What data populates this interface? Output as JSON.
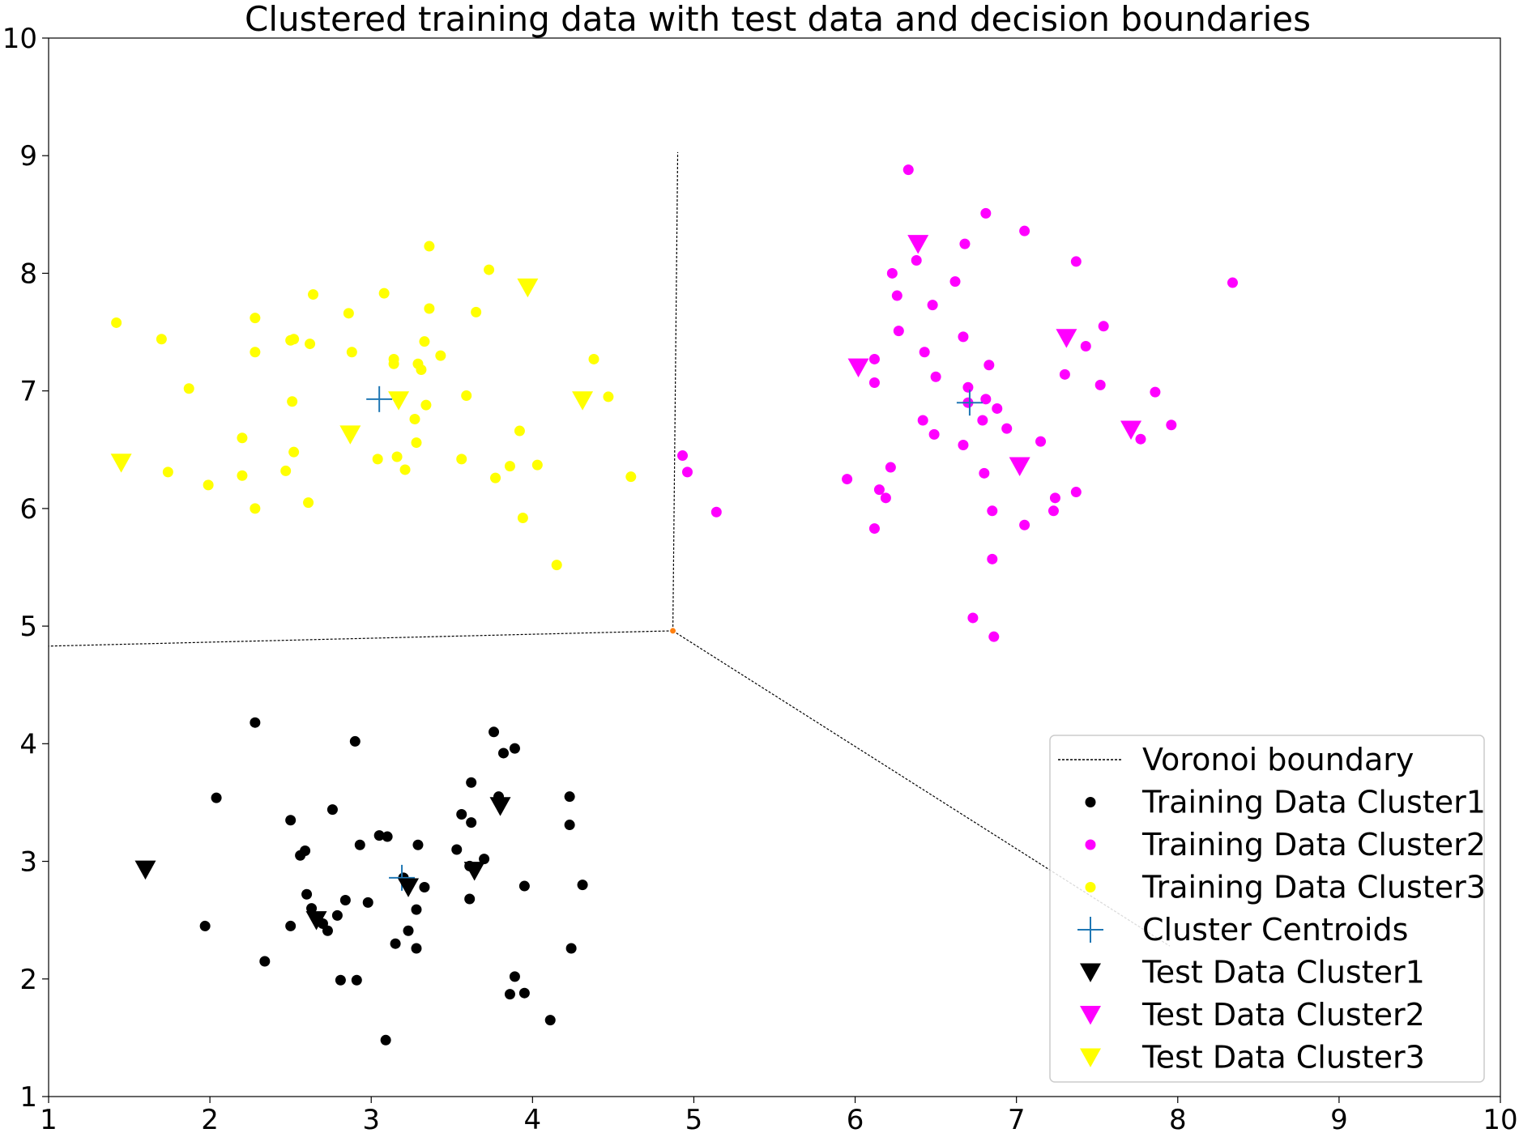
{
  "chart_data": {
    "type": "scatter",
    "title": "Clustered training data with test data and decision boundaries",
    "xlabel": "",
    "ylabel": "",
    "xlim": [
      1,
      10
    ],
    "ylim": [
      1,
      10
    ],
    "x_ticks": [
      "1",
      "2",
      "3",
      "4",
      "5",
      "6",
      "7",
      "8",
      "9",
      "10"
    ],
    "y_ticks": [
      "1",
      "2",
      "3",
      "4",
      "5",
      "6",
      "7",
      "8",
      "9",
      "10"
    ],
    "grid": false,
    "legend_position": "lower right",
    "voronoi": {
      "name": "Voronoi boundary",
      "vertex": [
        4.87,
        4.96
      ],
      "segments": [
        [
          [
            4.87,
            4.96
          ],
          [
            4.9,
            9.03
          ]
        ],
        [
          [
            4.87,
            4.96
          ],
          [
            1.0,
            4.83
          ]
        ],
        [
          [
            4.87,
            4.96
          ],
          [
            7.95,
            2.28
          ]
        ]
      ],
      "vertex_color": "#ff7f0e"
    },
    "series": [
      {
        "name": "Training Data Cluster1",
        "color": "#000000",
        "marker": "circle",
        "points": [
          [
            2.28,
            4.18
          ],
          [
            2.9,
            4.02
          ],
          [
            3.76,
            4.1
          ],
          [
            3.89,
            3.96
          ],
          [
            3.82,
            3.92
          ],
          [
            2.04,
            3.54
          ],
          [
            3.62,
            3.67
          ],
          [
            3.79,
            3.55
          ],
          [
            4.23,
            3.55
          ],
          [
            3.56,
            3.4
          ],
          [
            2.76,
            3.44
          ],
          [
            2.5,
            3.35
          ],
          [
            3.62,
            3.33
          ],
          [
            4.23,
            3.31
          ],
          [
            3.05,
            3.22
          ],
          [
            3.1,
            3.21
          ],
          [
            2.93,
            3.14
          ],
          [
            3.29,
            3.14
          ],
          [
            3.53,
            3.1
          ],
          [
            2.59,
            3.09
          ],
          [
            2.56,
            3.05
          ],
          [
            3.7,
            3.02
          ],
          [
            3.61,
            2.96
          ],
          [
            1.6,
            2.95
          ],
          [
            3.2,
            2.86
          ],
          [
            4.31,
            2.8
          ],
          [
            3.95,
            2.79
          ],
          [
            3.33,
            2.78
          ],
          [
            2.6,
            2.72
          ],
          [
            3.61,
            2.68
          ],
          [
            2.84,
            2.67
          ],
          [
            2.98,
            2.65
          ],
          [
            2.63,
            2.6
          ],
          [
            3.28,
            2.59
          ],
          [
            2.79,
            2.54
          ],
          [
            2.66,
            2.51
          ],
          [
            2.7,
            2.47
          ],
          [
            1.97,
            2.45
          ],
          [
            2.5,
            2.45
          ],
          [
            3.23,
            2.41
          ],
          [
            2.73,
            2.41
          ],
          [
            3.15,
            2.3
          ],
          [
            3.28,
            2.26
          ],
          [
            4.24,
            2.26
          ],
          [
            2.34,
            2.15
          ],
          [
            3.89,
            2.02
          ],
          [
            2.81,
            1.99
          ],
          [
            2.91,
            1.99
          ],
          [
            3.95,
            1.88
          ],
          [
            3.86,
            1.87
          ],
          [
            4.11,
            1.65
          ],
          [
            3.09,
            1.48
          ]
        ]
      },
      {
        "name": "Training Data Cluster2",
        "color": "#ff00ff",
        "marker": "circle",
        "points": [
          [
            6.33,
            8.88
          ],
          [
            6.81,
            8.51
          ],
          [
            7.05,
            8.36
          ],
          [
            6.68,
            8.25
          ],
          [
            6.38,
            8.11
          ],
          [
            7.37,
            8.1
          ],
          [
            6.23,
            8.0
          ],
          [
            6.62,
            7.93
          ],
          [
            8.34,
            7.92
          ],
          [
            6.26,
            7.81
          ],
          [
            6.48,
            7.73
          ],
          [
            7.54,
            7.55
          ],
          [
            6.27,
            7.51
          ],
          [
            6.67,
            7.46
          ],
          [
            7.43,
            7.38
          ],
          [
            6.43,
            7.33
          ],
          [
            6.12,
            7.27
          ],
          [
            6.83,
            7.22
          ],
          [
            6.5,
            7.12
          ],
          [
            7.3,
            7.14
          ],
          [
            6.12,
            7.07
          ],
          [
            7.52,
            7.05
          ],
          [
            6.7,
            7.03
          ],
          [
            7.86,
            6.99
          ],
          [
            6.81,
            6.93
          ],
          [
            6.7,
            6.9
          ],
          [
            6.88,
            6.85
          ],
          [
            6.42,
            6.75
          ],
          [
            6.79,
            6.75
          ],
          [
            7.96,
            6.71
          ],
          [
            6.94,
            6.68
          ],
          [
            6.49,
            6.63
          ],
          [
            7.77,
            6.59
          ],
          [
            7.15,
            6.57
          ],
          [
            6.67,
            6.54
          ],
          [
            4.93,
            6.45
          ],
          [
            6.22,
            6.35
          ],
          [
            4.96,
            6.31
          ],
          [
            6.8,
            6.3
          ],
          [
            5.95,
            6.25
          ],
          [
            6.15,
            6.16
          ],
          [
            7.37,
            6.14
          ],
          [
            6.19,
            6.09
          ],
          [
            7.24,
            6.09
          ],
          [
            6.85,
            5.98
          ],
          [
            7.23,
            5.98
          ],
          [
            5.14,
            5.97
          ],
          [
            7.05,
            5.86
          ],
          [
            6.12,
            5.83
          ],
          [
            6.85,
            5.57
          ],
          [
            6.73,
            5.07
          ],
          [
            6.86,
            4.91
          ]
        ]
      },
      {
        "name": "Training Data Cluster3",
        "color": "#ffff00",
        "marker": "circle",
        "points": [
          [
            3.36,
            8.23
          ],
          [
            3.73,
            8.03
          ],
          [
            2.64,
            7.82
          ],
          [
            3.08,
            7.83
          ],
          [
            3.65,
            7.67
          ],
          [
            3.36,
            7.7
          ],
          [
            2.86,
            7.66
          ],
          [
            2.28,
            7.62
          ],
          [
            1.42,
            7.58
          ],
          [
            1.7,
            7.44
          ],
          [
            2.5,
            7.43
          ],
          [
            2.52,
            7.44
          ],
          [
            2.62,
            7.4
          ],
          [
            3.33,
            7.42
          ],
          [
            2.88,
            7.33
          ],
          [
            2.28,
            7.33
          ],
          [
            3.43,
            7.3
          ],
          [
            3.14,
            7.27
          ],
          [
            4.38,
            7.27
          ],
          [
            3.14,
            7.23
          ],
          [
            3.29,
            7.23
          ],
          [
            3.31,
            7.18
          ],
          [
            1.87,
            7.02
          ],
          [
            3.59,
            6.96
          ],
          [
            4.47,
            6.95
          ],
          [
            2.51,
            6.91
          ],
          [
            3.34,
            6.88
          ],
          [
            3.27,
            6.76
          ],
          [
            3.92,
            6.66
          ],
          [
            2.2,
            6.6
          ],
          [
            3.28,
            6.56
          ],
          [
            2.52,
            6.48
          ],
          [
            3.16,
            6.44
          ],
          [
            3.04,
            6.42
          ],
          [
            3.56,
            6.42
          ],
          [
            4.03,
            6.37
          ],
          [
            3.86,
            6.36
          ],
          [
            1.74,
            6.31
          ],
          [
            3.21,
            6.33
          ],
          [
            2.47,
            6.32
          ],
          [
            2.2,
            6.28
          ],
          [
            3.77,
            6.26
          ],
          [
            4.61,
            6.27
          ],
          [
            1.99,
            6.2
          ],
          [
            2.61,
            6.05
          ],
          [
            2.28,
            6.0
          ],
          [
            3.94,
            5.92
          ],
          [
            4.15,
            5.52
          ]
        ]
      },
      {
        "name": "Cluster Centroids",
        "color": "#1f77b4",
        "marker": "plus",
        "points": [
          [
            3.05,
            6.93
          ],
          [
            6.71,
            6.9
          ],
          [
            3.19,
            2.86
          ]
        ]
      },
      {
        "name": "Test Data Cluster1",
        "color": "#000000",
        "marker": "triangle_down",
        "points": [
          [
            1.6,
            2.93
          ],
          [
            3.8,
            3.47
          ],
          [
            3.64,
            2.92
          ],
          [
            3.23,
            2.78
          ],
          [
            2.66,
            2.5
          ]
        ]
      },
      {
        "name": "Test Data Cluster2",
        "color": "#ff00ff",
        "marker": "triangle_down",
        "points": [
          [
            6.39,
            8.25
          ],
          [
            6.02,
            7.2
          ],
          [
            7.31,
            7.45
          ],
          [
            7.71,
            6.67
          ],
          [
            7.02,
            6.36
          ]
        ]
      },
      {
        "name": "Test Data Cluster3",
        "color": "#ffff00",
        "marker": "triangle_down",
        "points": [
          [
            3.97,
            7.88
          ],
          [
            3.17,
            6.92
          ],
          [
            4.31,
            6.92
          ],
          [
            2.87,
            6.63
          ],
          [
            1.45,
            6.39
          ]
        ]
      }
    ]
  }
}
